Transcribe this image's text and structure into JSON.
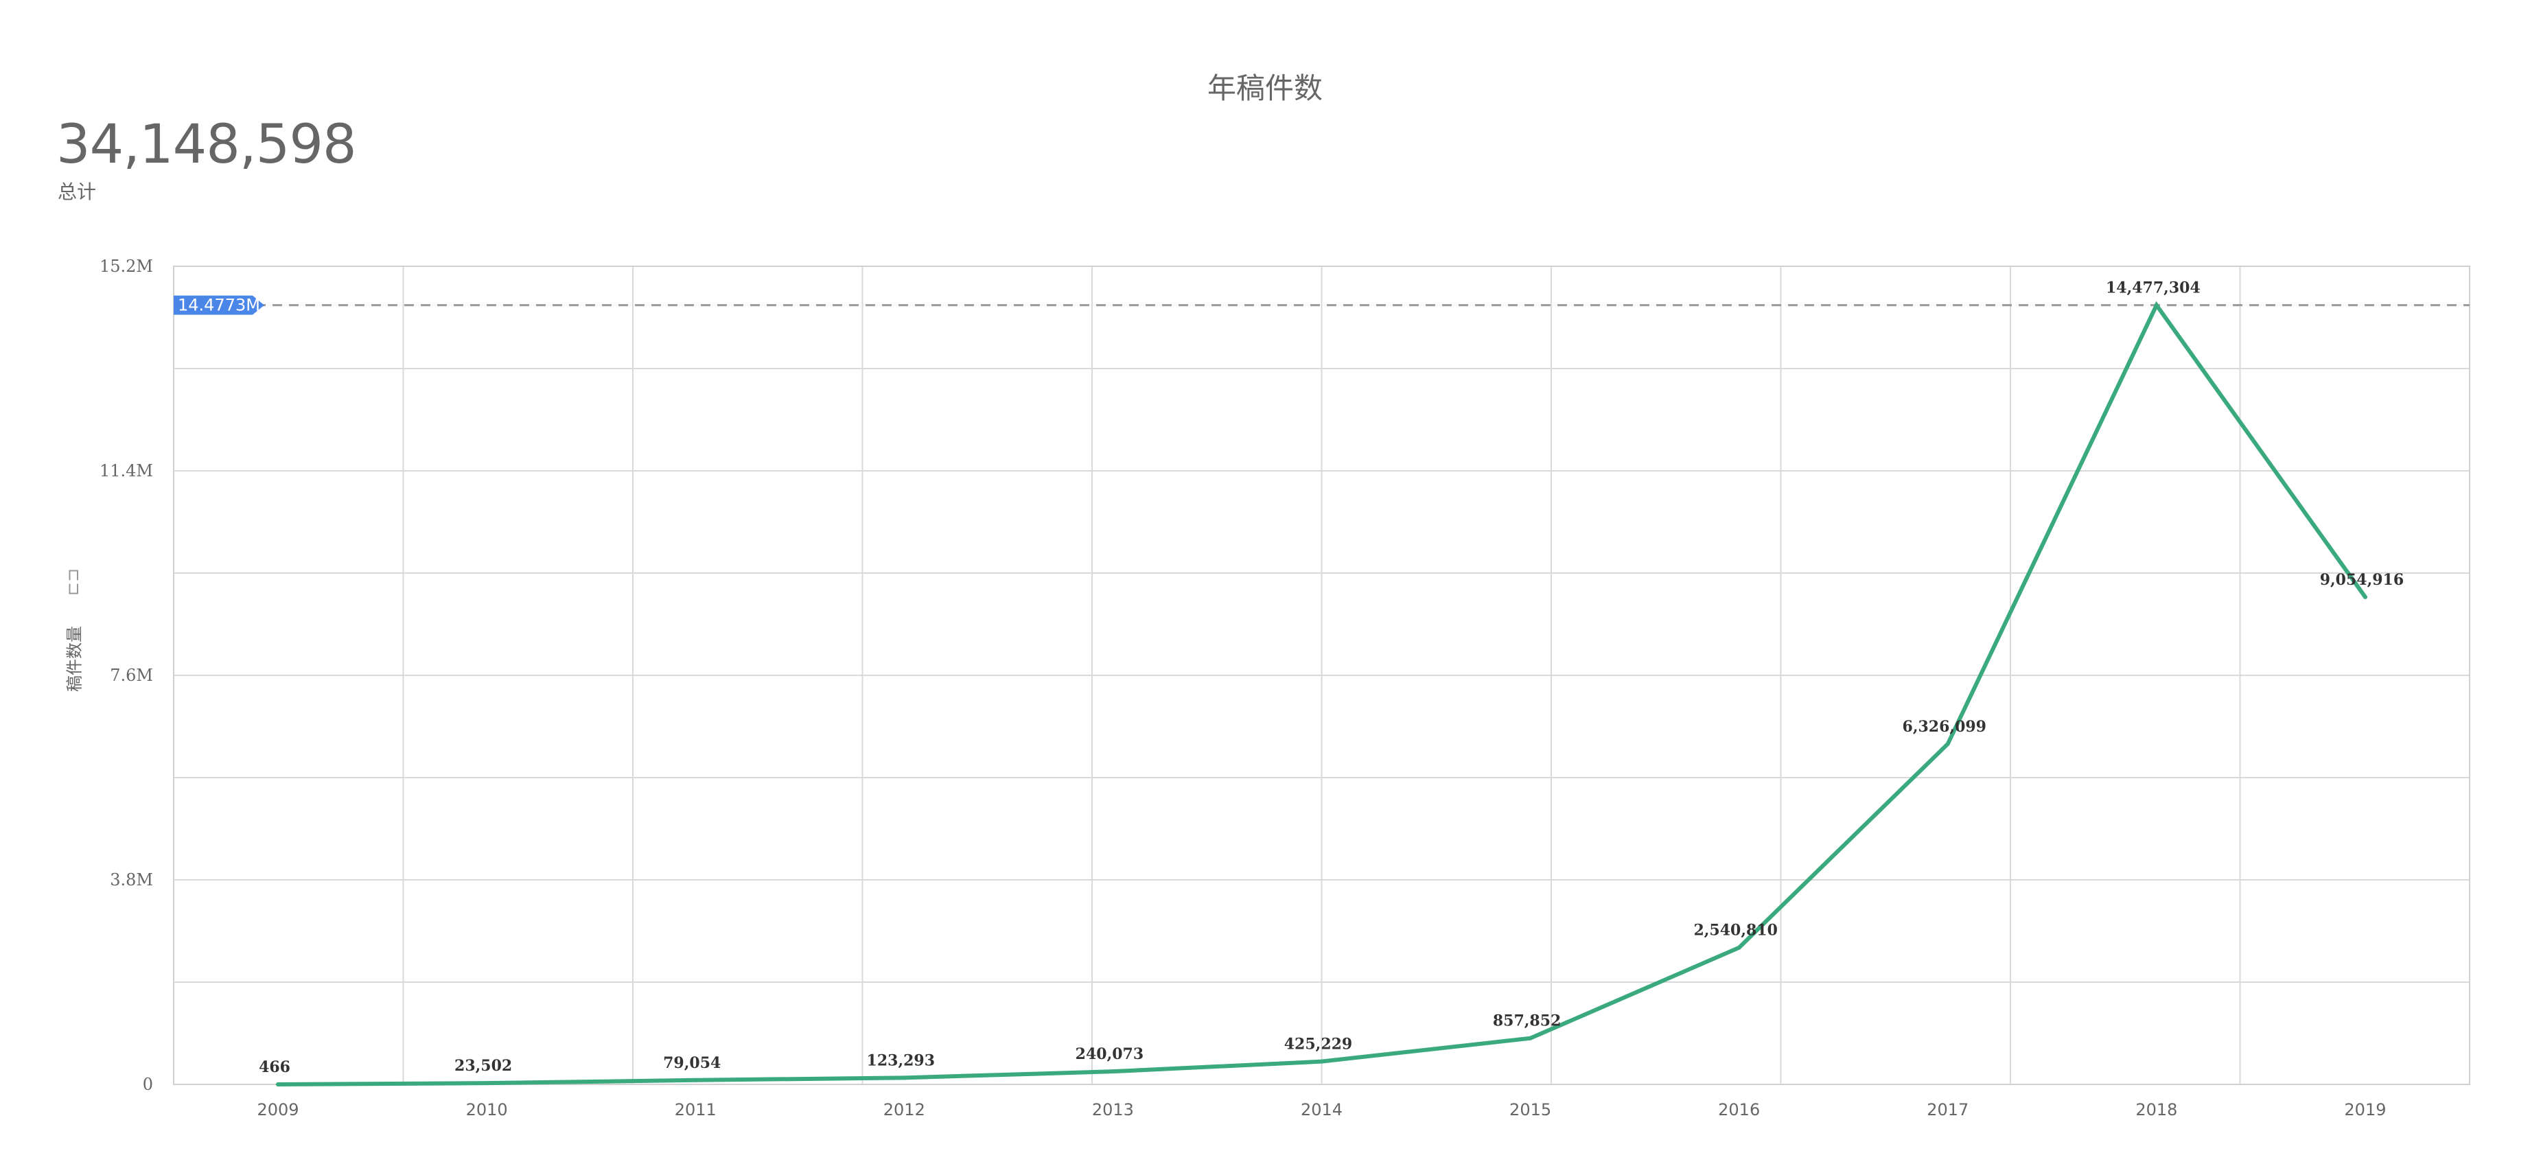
{
  "chart_data": {
    "type": "line",
    "title": "年稿件数",
    "ylabel": "稿件数量",
    "categories": [
      "2009",
      "2010",
      "2011",
      "2012",
      "2013",
      "2014",
      "2015",
      "2016",
      "2017",
      "2018",
      "2019"
    ],
    "series": [
      {
        "values": [
          466,
          23502,
          79054,
          123293,
          240073,
          425229,
          857852,
          2540810,
          6326099,
          14477304,
          9054916
        ]
      }
    ],
    "data_labels": [
      "466",
      "23,502",
      "79,054",
      "123,293",
      "240,073",
      "425,229",
      "857,852",
      "2,540,810",
      "6,326,099",
      "14,477,304",
      "9,054,916"
    ],
    "ylim": [
      0,
      15200000
    ],
    "y_ticks": [
      0,
      3800000,
      7600000,
      11400000,
      15200000
    ],
    "y_tick_labels": [
      "0",
      "3.8M",
      "7.6M",
      "11.4M",
      "15.2M"
    ],
    "reference_line": {
      "value": 14477304,
      "label": "14.4773M",
      "color": "#4a86e8"
    },
    "line_color": "#3aaa7e",
    "grid": true
  },
  "kpi": {
    "value": "34,148,598",
    "label": "总计"
  }
}
